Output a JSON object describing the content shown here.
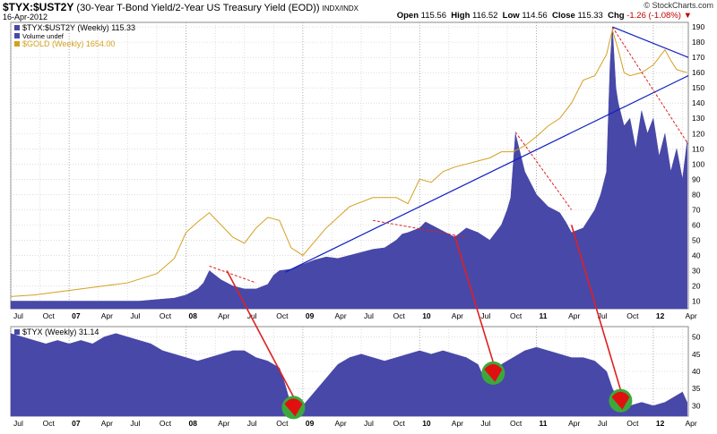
{
  "header": {
    "symbol": "$TYX:$UST2Y",
    "description": "(30-Year T-Bond Yield/2-Year US Treasury Yield (EOD))",
    "exchange": "INDX/INDX",
    "date": "16-Apr-2012",
    "brand": "© StockCharts.com",
    "ohlc": {
      "open_label": "Open",
      "open": "115.56",
      "high_label": "High",
      "high": "116.52",
      "low_label": "Low",
      "low": "114.56",
      "close_label": "Close",
      "close": "115.33",
      "chg_label": "Chg",
      "chg": "-1.26 (-1.08%)"
    }
  },
  "colors": {
    "area": "#4848a8",
    "gold": "#d4a020",
    "trend_blue": "#1020c0",
    "trend_red": "#e02020",
    "marker_green": "#3ca83c",
    "marker_red": "#e01010",
    "grid": "#c8c8c8"
  },
  "chart_data": [
    {
      "type": "area",
      "legend": [
        "$TYX:$UST2Y (Weekly) 115.33",
        "Volume undef",
        "$GOLD (Weekly) 1654.00"
      ],
      "legend_placement": "top-left",
      "x_ticks": [
        "Jul",
        "Oct",
        "07",
        "Apr",
        "Jul",
        "Oct",
        "08",
        "Apr",
        "Jul",
        "Oct",
        "09",
        "Apr",
        "Jul",
        "Oct",
        "10",
        "Apr",
        "Jul",
        "Oct",
        "11",
        "Apr",
        "Jul",
        "Oct",
        "12",
        "Apr"
      ],
      "y_ticks": [
        10,
        20,
        30,
        40,
        50,
        60,
        70,
        80,
        90,
        100,
        110,
        120,
        130,
        140,
        150,
        160,
        170,
        180,
        190
      ],
      "ylim": [
        5,
        193
      ],
      "xlim": [
        2006.5,
        2012.3
      ],
      "grid": true,
      "series": [
        {
          "name": "$TYX:$UST2Y (Weekly)",
          "x": [
            2006.5,
            2006.7,
            2006.9,
            2007.1,
            2007.3,
            2007.5,
            2007.6,
            2007.75,
            2007.9,
            2008.0,
            2008.1,
            2008.15,
            2008.2,
            2008.3,
            2008.4,
            2008.5,
            2008.6,
            2008.7,
            2008.75,
            2008.8,
            2008.9,
            2009.0,
            2009.1,
            2009.2,
            2009.3,
            2009.4,
            2009.5,
            2009.6,
            2009.7,
            2009.8,
            2009.85,
            2009.9,
            2010.0,
            2010.05,
            2010.1,
            2010.2,
            2010.3,
            2010.4,
            2010.5,
            2010.6,
            2010.7,
            2010.75,
            2010.78,
            2010.82,
            2010.9,
            2011.0,
            2011.1,
            2011.2,
            2011.25,
            2011.3,
            2011.4,
            2011.5,
            2011.55,
            2011.6,
            2011.63,
            2011.65,
            2011.68,
            2011.7,
            2011.75,
            2011.8,
            2011.85,
            2011.9,
            2011.95,
            2012.0,
            2012.05,
            2012.1,
            2012.15,
            2012.2,
            2012.25,
            2012.29
          ],
          "values": [
            10,
            10,
            10,
            10,
            10,
            10,
            10,
            11,
            12,
            14,
            18,
            22,
            30,
            24,
            20,
            18,
            18,
            21,
            27,
            30,
            31,
            34,
            37,
            39,
            38,
            40,
            42,
            44,
            45,
            50,
            54,
            55,
            58,
            62,
            60,
            56,
            52,
            58,
            55,
            50,
            60,
            70,
            78,
            120,
            95,
            80,
            72,
            68,
            62,
            55,
            58,
            70,
            80,
            95,
            165,
            190,
            150,
            140,
            125,
            130,
            110,
            135,
            120,
            130,
            105,
            120,
            95,
            110,
            90,
            115
          ]
        },
        {
          "name": "$GOLD (Weekly)",
          "x": [
            2006.5,
            2006.7,
            2006.9,
            2007.1,
            2007.3,
            2007.5,
            2007.75,
            2007.9,
            2008.0,
            2008.1,
            2008.2,
            2008.3,
            2008.4,
            2008.5,
            2008.6,
            2008.7,
            2008.8,
            2008.9,
            2009.0,
            2009.2,
            2009.4,
            2009.6,
            2009.8,
            2009.9,
            2010.0,
            2010.1,
            2010.2,
            2010.3,
            2010.4,
            2010.5,
            2010.6,
            2010.7,
            2010.8,
            2010.9,
            2011.0,
            2011.1,
            2011.2,
            2011.3,
            2011.4,
            2011.5,
            2011.6,
            2011.65,
            2011.7,
            2011.75,
            2011.8,
            2011.9,
            2012.0,
            2012.05,
            2012.1,
            2012.15,
            2012.2,
            2012.29
          ],
          "values": [
            13,
            14,
            16,
            18,
            20,
            22,
            28,
            38,
            55,
            62,
            68,
            60,
            52,
            48,
            58,
            65,
            63,
            45,
            40,
            58,
            72,
            78,
            78,
            74,
            90,
            88,
            95,
            98,
            100,
            102,
            104,
            108,
            108,
            112,
            118,
            125,
            130,
            140,
            155,
            158,
            172,
            188,
            175,
            160,
            158,
            160,
            165,
            170,
            175,
            168,
            162,
            160
          ]
        }
      ],
      "trendlines": [
        {
          "color": "blue",
          "style": "solid",
          "x": [
            2008.85,
            2012.3
          ],
          "y": [
            29,
            158
          ]
        },
        {
          "color": "blue",
          "style": "solid",
          "x": [
            2011.65,
            2012.3
          ],
          "y": [
            190,
            170
          ]
        },
        {
          "color": "red",
          "style": "dashed",
          "x": [
            2008.2,
            2008.6
          ],
          "y": [
            33,
            22
          ]
        },
        {
          "color": "red",
          "style": "dashed",
          "x": [
            2009.6,
            2010.4
          ],
          "y": [
            63,
            52
          ]
        },
        {
          "color": "red",
          "style": "dashed",
          "x": [
            2010.82,
            2011.3
          ],
          "y": [
            121,
            70
          ]
        },
        {
          "color": "red",
          "style": "dashed",
          "x": [
            2011.65,
            2012.3
          ],
          "y": [
            190,
            113
          ]
        }
      ]
    },
    {
      "type": "area",
      "legend": [
        "$TYX (Weekly) 31.14"
      ],
      "legend_placement": "top-left",
      "x_ticks": [
        "Jul",
        "Oct",
        "07",
        "Apr",
        "Jul",
        "Oct",
        "08",
        "Apr",
        "Jul",
        "Oct",
        "09",
        "Apr",
        "Jul",
        "Oct",
        "10",
        "Apr",
        "Jul",
        "Oct",
        "11",
        "Apr",
        "Jul",
        "Oct",
        "12",
        "Apr"
      ],
      "y_ticks": [
        30,
        35,
        40,
        45,
        50
      ],
      "ylim": [
        27,
        53
      ],
      "xlim": [
        2006.5,
        2012.3
      ],
      "grid": true,
      "series": [
        {
          "name": "$TYX (Weekly)",
          "x": [
            2006.5,
            2006.6,
            2006.7,
            2006.8,
            2006.9,
            2007.0,
            2007.1,
            2007.2,
            2007.3,
            2007.4,
            2007.5,
            2007.6,
            2007.7,
            2007.8,
            2007.9,
            2008.0,
            2008.1,
            2008.2,
            2008.3,
            2008.4,
            2008.5,
            2008.6,
            2008.7,
            2008.8,
            2008.85,
            2008.9,
            2008.95,
            2009.0,
            2009.05,
            2009.1,
            2009.2,
            2009.3,
            2009.4,
            2009.5,
            2009.6,
            2009.7,
            2009.8,
            2009.9,
            2010.0,
            2010.1,
            2010.2,
            2010.3,
            2010.4,
            2010.5,
            2010.55,
            2010.6,
            2010.65,
            2010.7,
            2010.8,
            2010.9,
            2011.0,
            2011.1,
            2011.2,
            2011.3,
            2011.4,
            2011.5,
            2011.6,
            2011.65,
            2011.7,
            2011.75,
            2011.8,
            2011.9,
            2012.0,
            2012.1,
            2012.2,
            2012.25,
            2012.29
          ],
          "values": [
            51,
            50,
            49,
            48,
            49,
            48,
            49,
            48,
            50,
            51,
            50,
            49,
            48,
            46,
            45,
            44,
            43,
            44,
            45,
            46,
            46,
            44,
            43,
            41,
            36,
            30,
            27,
            30,
            32,
            34,
            38,
            42,
            44,
            45,
            44,
            43,
            44,
            45,
            46,
            45,
            46,
            45,
            44,
            42,
            38,
            39,
            40,
            42,
            44,
            46,
            47,
            46,
            45,
            44,
            44,
            43,
            40,
            35,
            32,
            30,
            30,
            31,
            30,
            31,
            33,
            34,
            31
          ]
        }
      ]
    }
  ],
  "annotations": [
    {
      "from_chart": 0,
      "x0": 2008.35,
      "y0": 30,
      "to_chart": 1,
      "x1": 2008.92,
      "y1": 29.5
    },
    {
      "from_chart": 0,
      "x0": 2010.3,
      "y0": 53,
      "to_chart": 1,
      "x1": 2010.63,
      "y1": 39.5
    },
    {
      "from_chart": 0,
      "x0": 2011.3,
      "y0": 60,
      "to_chart": 1,
      "x1": 2011.72,
      "y1": 31.5
    }
  ]
}
